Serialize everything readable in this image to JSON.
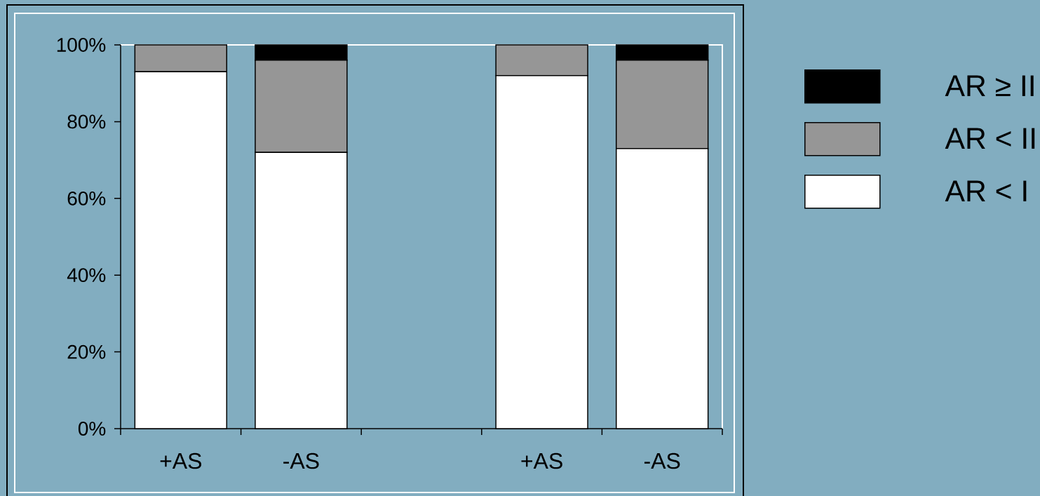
{
  "chart_data": {
    "type": "bar",
    "stacked": true,
    "categories": [
      "+AS",
      "-AS",
      null,
      "+AS",
      "-AS"
    ],
    "series": [
      {
        "name": "AR < I",
        "color": "#ffffff",
        "values": [
          93,
          72,
          null,
          92,
          73
        ]
      },
      {
        "name": "AR < II",
        "color": "#969696",
        "values": [
          7,
          24,
          null,
          8,
          23
        ]
      },
      {
        "name": "AR ≥ II",
        "color": "#000000",
        "values": [
          0,
          4,
          null,
          0,
          4
        ]
      }
    ],
    "ylim": [
      0,
      100
    ],
    "yticks": [
      {
        "value": 0,
        "label": "0%"
      },
      {
        "value": 20,
        "label": "20%"
      },
      {
        "value": 40,
        "label": "40%"
      },
      {
        "value": 60,
        "label": "60%"
      },
      {
        "value": 80,
        "label": "80%"
      },
      {
        "value": 100,
        "label": "100%"
      }
    ],
    "legend": "right"
  }
}
